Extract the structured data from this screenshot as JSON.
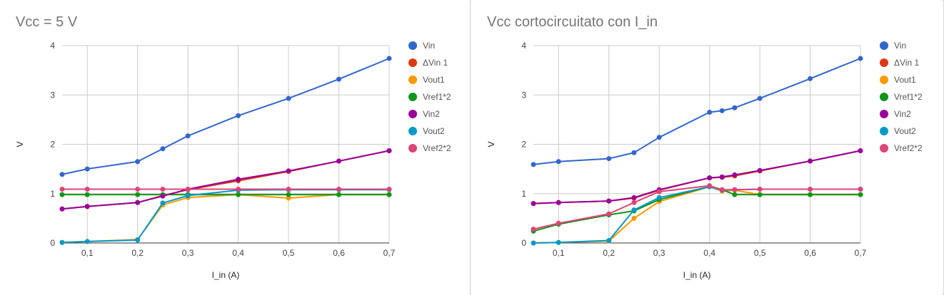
{
  "chart_data": [
    {
      "type": "line",
      "title": "Vcc = 5 V",
      "xlabel": "I_in (A)",
      "ylabel": "V",
      "xlim": [
        0.05,
        0.7
      ],
      "ylim": [
        0,
        4
      ],
      "x_ticks": [
        "0,1",
        "0,2",
        "0,3",
        "0,4",
        "0,5",
        "0,6",
        "0,7"
      ],
      "y_ticks": [
        "0",
        "1",
        "2",
        "3",
        "4"
      ],
      "grid": true,
      "legend_position": "right",
      "x": [
        0.05,
        0.1,
        0.2,
        0.25,
        0.3,
        0.4,
        0.5,
        0.6,
        0.7
      ],
      "series": [
        {
          "name": "Vin",
          "color": "#3366cc",
          "values": [
            1.39,
            1.5,
            1.65,
            1.91,
            2.17,
            2.58,
            2.93,
            3.32,
            3.74
          ]
        },
        {
          "name": "ΔVin 1",
          "color": "#dc3912",
          "values": [
            0.69,
            0.74,
            0.82,
            0.96,
            1.08,
            1.26,
            1.45,
            1.66,
            1.87
          ]
        },
        {
          "name": "Vout1",
          "color": "#ff9900",
          "values": [
            0.01,
            0.03,
            0.07,
            0.77,
            0.92,
            0.98,
            0.91,
            0.98,
            0.98
          ]
        },
        {
          "name": "Vref1*2",
          "color": "#109618",
          "values": [
            0.98,
            0.98,
            0.98,
            0.98,
            0.98,
            0.98,
            0.98,
            0.98,
            0.98
          ]
        },
        {
          "name": "Vin2",
          "color": "#990099",
          "values": [
            0.69,
            0.74,
            0.82,
            0.95,
            1.09,
            1.29,
            1.46,
            1.66,
            1.87
          ]
        },
        {
          "name": "Vout2",
          "color": "#0099c6",
          "values": [
            0.01,
            0.03,
            0.06,
            0.81,
            0.96,
            1.07,
            1.08,
            1.08,
            1.08
          ]
        },
        {
          "name": "Vref2*2",
          "color": "#dd4477",
          "values": [
            1.09,
            1.09,
            1.09,
            1.09,
            1.09,
            1.09,
            1.09,
            1.09,
            1.09
          ]
        }
      ]
    },
    {
      "type": "line",
      "title": "Vcc cortocircuitato con I_in",
      "xlabel": "I_in (A)",
      "ylabel": "V",
      "xlim": [
        0.05,
        0.7
      ],
      "ylim": [
        0,
        4
      ],
      "x_ticks": [
        "0,1",
        "0,2",
        "0,3",
        "0,4",
        "0,5",
        "0,6",
        "0,7"
      ],
      "y_ticks": [
        "0",
        "1",
        "2",
        "3",
        "4"
      ],
      "grid": true,
      "legend_position": "right",
      "x": [
        0.05,
        0.1,
        0.2,
        0.25,
        0.3,
        0.4,
        0.425,
        0.45,
        0.5,
        0.6,
        0.7
      ],
      "series": [
        {
          "name": "Vin",
          "color": "#3366cc",
          "values": [
            1.59,
            1.65,
            1.71,
            1.83,
            2.14,
            2.65,
            2.68,
            2.74,
            2.93,
            3.33,
            3.74
          ]
        },
        {
          "name": "ΔVin 1",
          "color": "#dc3912",
          "values": [
            0.8,
            0.82,
            0.85,
            0.91,
            1.07,
            1.32,
            1.33,
            1.36,
            1.46,
            1.66,
            1.87
          ]
        },
        {
          "name": "Vout1",
          "color": "#ff9900",
          "values": [
            0.0,
            0.01,
            0.04,
            0.5,
            0.84,
            1.14,
            1.05,
            1.07,
            0.98,
            0.98,
            0.98
          ]
        },
        {
          "name": "Vref1*2",
          "color": "#109618",
          "values": [
            0.24,
            0.38,
            0.57,
            0.65,
            0.88,
            1.14,
            1.08,
            0.98,
            0.98,
            0.98,
            0.98
          ]
        },
        {
          "name": "Vin2",
          "color": "#990099",
          "values": [
            0.8,
            0.82,
            0.85,
            0.92,
            1.08,
            1.32,
            1.34,
            1.38,
            1.47,
            1.66,
            1.87
          ]
        },
        {
          "name": "Vout2",
          "color": "#0099c6",
          "values": [
            0.0,
            0.01,
            0.05,
            0.67,
            0.92,
            1.14,
            1.07,
            1.08,
            1.09,
            1.09,
            1.09
          ]
        },
        {
          "name": "Vref2*2",
          "color": "#dd4477",
          "values": [
            0.28,
            0.4,
            0.59,
            0.82,
            1.04,
            1.16,
            1.08,
            1.08,
            1.09,
            1.09,
            1.09
          ]
        }
      ]
    }
  ]
}
